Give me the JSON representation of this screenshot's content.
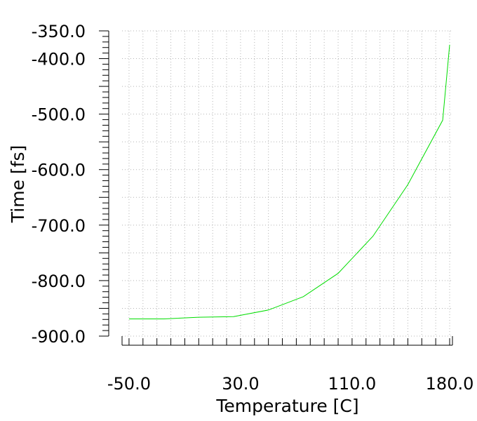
{
  "chart_data": {
    "type": "line",
    "xlabel": "Temperature [C]",
    "ylabel": "Time [fs]",
    "xlim": [
      -55,
      182
    ],
    "ylim": [
      -900,
      -350
    ],
    "xticks": [
      {
        "value": -50,
        "label": "-50.0"
      },
      {
        "value": 30,
        "label": "30.0"
      },
      {
        "value": 110,
        "label": "110.0"
      },
      {
        "value": 180,
        "label": "180.0"
      }
    ],
    "yticks": [
      {
        "value": -350,
        "label": "-350.0"
      },
      {
        "value": -400,
        "label": "-400.0"
      },
      {
        "value": -500,
        "label": "-500.0"
      },
      {
        "value": -600,
        "label": "-600.0"
      },
      {
        "value": -700,
        "label": "-700.0"
      },
      {
        "value": -800,
        "label": "-800.0"
      },
      {
        "value": -900,
        "label": "-900.0"
      }
    ],
    "grid": true,
    "series": [
      {
        "color": "#00dd00",
        "x": [
          -50,
          -25,
          0,
          25,
          50,
          75,
          100,
          125,
          150,
          175,
          180
        ],
        "y": [
          -869,
          -869,
          -866,
          -865,
          -853,
          -829,
          -787,
          -720,
          -627,
          -511,
          -375
        ]
      }
    ]
  }
}
